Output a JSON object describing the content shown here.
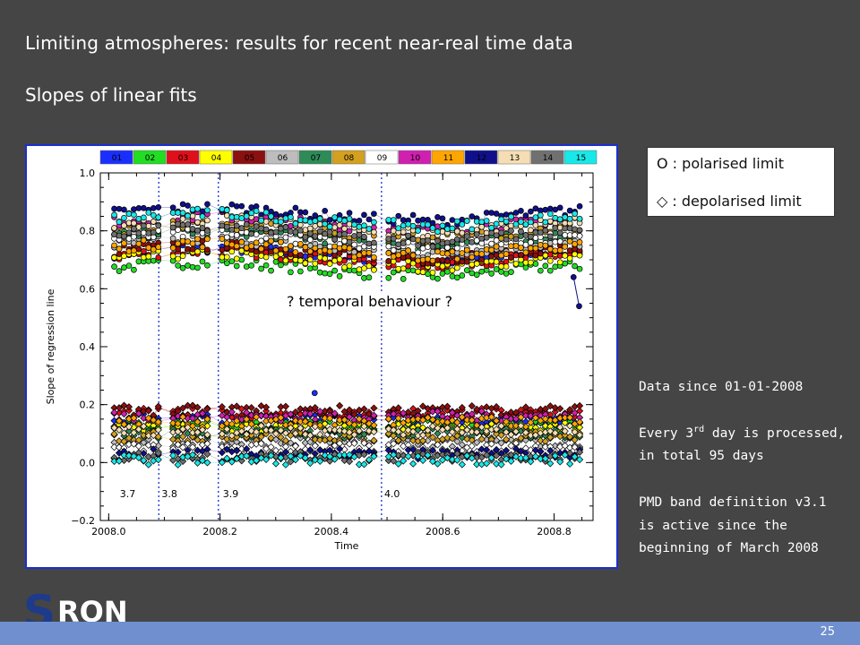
{
  "slide": {
    "title": "Limiting atmospheres: results for recent near-real time data",
    "subtitle": "Slopes of linear fits",
    "page_number": "25"
  },
  "legend_box": {
    "polarised": "O : polarised limit",
    "depolarised": "◇ : depolarised limit"
  },
  "info": {
    "line1": "Data since 01-01-2008",
    "line2_pre": "Every 3",
    "line2_sup": "rd",
    "line2_post": " day is processed,",
    "line3": "in total 95 days",
    "line4": "PMD band definition v3.1",
    "line5": "is active since the",
    "line6": "beginning of March 2008"
  },
  "logo": {
    "s": "S",
    "rest": "RON"
  },
  "colors": {
    "background": "#454545",
    "frame_border": "#1b2fd0",
    "footer": "#6f8fcf",
    "logo_blue": "#1e3a8a"
  },
  "chart_data": {
    "type": "scatter",
    "title": "",
    "xlabel": "Time",
    "ylabel": "Slope of regression line",
    "xlim": [
      2007.985,
      2008.87
    ],
    "ylim": [
      -0.2,
      1.0
    ],
    "x_ticks": [
      2008.0,
      2008.2,
      2008.4,
      2008.6,
      2008.8
    ],
    "x_tick_labels": [
      "2008.0",
      "2008.2",
      "2008.4",
      "2008.6",
      "2008.8"
    ],
    "y_ticks": [
      -0.2,
      0.0,
      0.2,
      0.4,
      0.6,
      0.8,
      1.0
    ],
    "y_tick_labels": [
      "−0.2",
      "0.0",
      "0.2",
      "0.4",
      "0.6",
      "0.8",
      "1.0"
    ],
    "annotation": "? temporal behaviour ?",
    "version_lines": [
      {
        "x": 2008.09,
        "label": "3.7",
        "label_x": 2008.02
      },
      {
        "x": 2008.197,
        "label": "3.8",
        "label_x": 2008.1
      },
      {
        "x": 2008.49,
        "label": "3.9",
        "label_x": 2008.205
      },
      {
        "x": 2008.49,
        "label": "4.0",
        "label_x": 2008.51
      }
    ],
    "grid": false,
    "legend": {
      "position": "top",
      "entries": [
        {
          "name": "01",
          "color": "#1a2fff"
        },
        {
          "name": "02",
          "color": "#22dd22"
        },
        {
          "name": "03",
          "color": "#e0101a"
        },
        {
          "name": "04",
          "color": "#ffff00"
        },
        {
          "name": "05",
          "color": "#8b1010"
        },
        {
          "name": "06",
          "color": "#bdbdbd"
        },
        {
          "name": "07",
          "color": "#2e8b57"
        },
        {
          "name": "08",
          "color": "#d4a020"
        },
        {
          "name": "09",
          "color": "#ffffff"
        },
        {
          "name": "10",
          "color": "#d020b0"
        },
        {
          "name": "11",
          "color": "#ffa500"
        },
        {
          "name": "12",
          "color": "#10108b"
        },
        {
          "name": "13",
          "color": "#f5deb3"
        },
        {
          "name": "14",
          "color": "#707070"
        },
        {
          "name": "15",
          "color": "#18e8e8"
        }
      ]
    },
    "series": [
      {
        "name": "01",
        "marker": "circle",
        "level": 0.72
      },
      {
        "name": "02",
        "marker": "circle",
        "level": 0.67
      },
      {
        "name": "03",
        "marker": "circle",
        "level": 0.71
      },
      {
        "name": "04",
        "marker": "circle",
        "level": 0.7
      },
      {
        "name": "05",
        "marker": "circle",
        "level": 0.73
      },
      {
        "name": "06",
        "marker": "circle",
        "level": 0.75
      },
      {
        "name": "07",
        "marker": "circle",
        "level": 0.78
      },
      {
        "name": "08",
        "marker": "circle",
        "level": 0.8
      },
      {
        "name": "09",
        "marker": "circle",
        "level": 0.77
      },
      {
        "name": "10",
        "marker": "circle",
        "level": 0.83
      },
      {
        "name": "11",
        "marker": "circle",
        "level": 0.74
      },
      {
        "name": "12",
        "marker": "circle",
        "level": 0.86
      },
      {
        "name": "13",
        "marker": "circle",
        "level": 0.82
      },
      {
        "name": "14",
        "marker": "circle",
        "level": 0.79
      },
      {
        "name": "15",
        "marker": "circle",
        "level": 0.84
      },
      {
        "name": "01",
        "marker": "diamond",
        "level": 0.15
      },
      {
        "name": "02",
        "marker": "diamond",
        "level": 0.13
      },
      {
        "name": "03",
        "marker": "diamond",
        "level": 0.17
      },
      {
        "name": "04",
        "marker": "diamond",
        "level": 0.12
      },
      {
        "name": "05",
        "marker": "diamond",
        "level": 0.18
      },
      {
        "name": "06",
        "marker": "diamond",
        "level": 0.07
      },
      {
        "name": "07",
        "marker": "diamond",
        "level": 0.1
      },
      {
        "name": "08",
        "marker": "diamond",
        "level": 0.09
      },
      {
        "name": "09",
        "marker": "diamond",
        "level": 0.05
      },
      {
        "name": "10",
        "marker": "diamond",
        "level": 0.16
      },
      {
        "name": "11",
        "marker": "diamond",
        "level": 0.14
      },
      {
        "name": "12",
        "marker": "diamond",
        "level": 0.03
      },
      {
        "name": "13",
        "marker": "diamond",
        "level": 0.11
      },
      {
        "name": "14",
        "marker": "diamond",
        "level": 0.02
      },
      {
        "name": "15",
        "marker": "diamond",
        "level": 0.01
      }
    ],
    "outliers": [
      {
        "name": "12",
        "x": 2008.845,
        "y": 0.54
      },
      {
        "name": "12",
        "x": 2008.835,
        "y": 0.64
      },
      {
        "name": "01",
        "x": 2008.37,
        "y": 0.24
      }
    ]
  }
}
